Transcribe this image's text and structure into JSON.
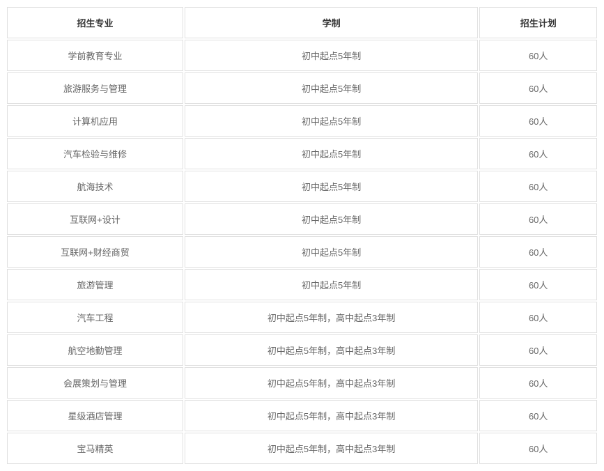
{
  "table": {
    "columns": [
      {
        "key": "major",
        "label": "招生专业",
        "class": "col-major"
      },
      {
        "key": "system",
        "label": "学制",
        "class": "col-system"
      },
      {
        "key": "plan",
        "label": "招生计划",
        "class": "col-plan"
      }
    ],
    "rows": [
      {
        "major": "学前教育专业",
        "system": "初中起点5年制",
        "plan": "60人"
      },
      {
        "major": "旅游服务与管理",
        "system": "初中起点5年制",
        "plan": "60人"
      },
      {
        "major": "计算机应用",
        "system": "初中起点5年制",
        "plan": "60人"
      },
      {
        "major": "汽车检验与维修",
        "system": "初中起点5年制",
        "plan": "60人"
      },
      {
        "major": "航海技术",
        "system": "初中起点5年制",
        "plan": "60人"
      },
      {
        "major": "互联网+设计",
        "system": "初中起点5年制",
        "plan": "60人"
      },
      {
        "major": "互联网+财经商贸",
        "system": "初中起点5年制",
        "plan": "60人"
      },
      {
        "major": "旅游管理",
        "system": "初中起点5年制",
        "plan": "60人"
      },
      {
        "major": "汽车工程",
        "system": "初中起点5年制，高中起点3年制",
        "plan": "60人"
      },
      {
        "major": "航空地勤管理",
        "system": "初中起点5年制，高中起点3年制",
        "plan": "60人"
      },
      {
        "major": "会展策划与管理",
        "system": "初中起点5年制，高中起点3年制",
        "plan": "60人"
      },
      {
        "major": "星级酒店管理",
        "system": "初中起点5年制，高中起点3年制",
        "plan": "60人"
      },
      {
        "major": "宝马精英",
        "system": "初中起点5年制，高中起点3年制",
        "plan": "60人"
      }
    ],
    "styling": {
      "border_color": "#e0e0e0",
      "header_text_color": "#333333",
      "cell_text_color": "#666666",
      "background_color": "#ffffff",
      "font_size": 13,
      "cell_padding": "12px 8px",
      "border_spacing": 2,
      "column_widths": [
        "30%",
        "50%",
        "20%"
      ]
    }
  }
}
